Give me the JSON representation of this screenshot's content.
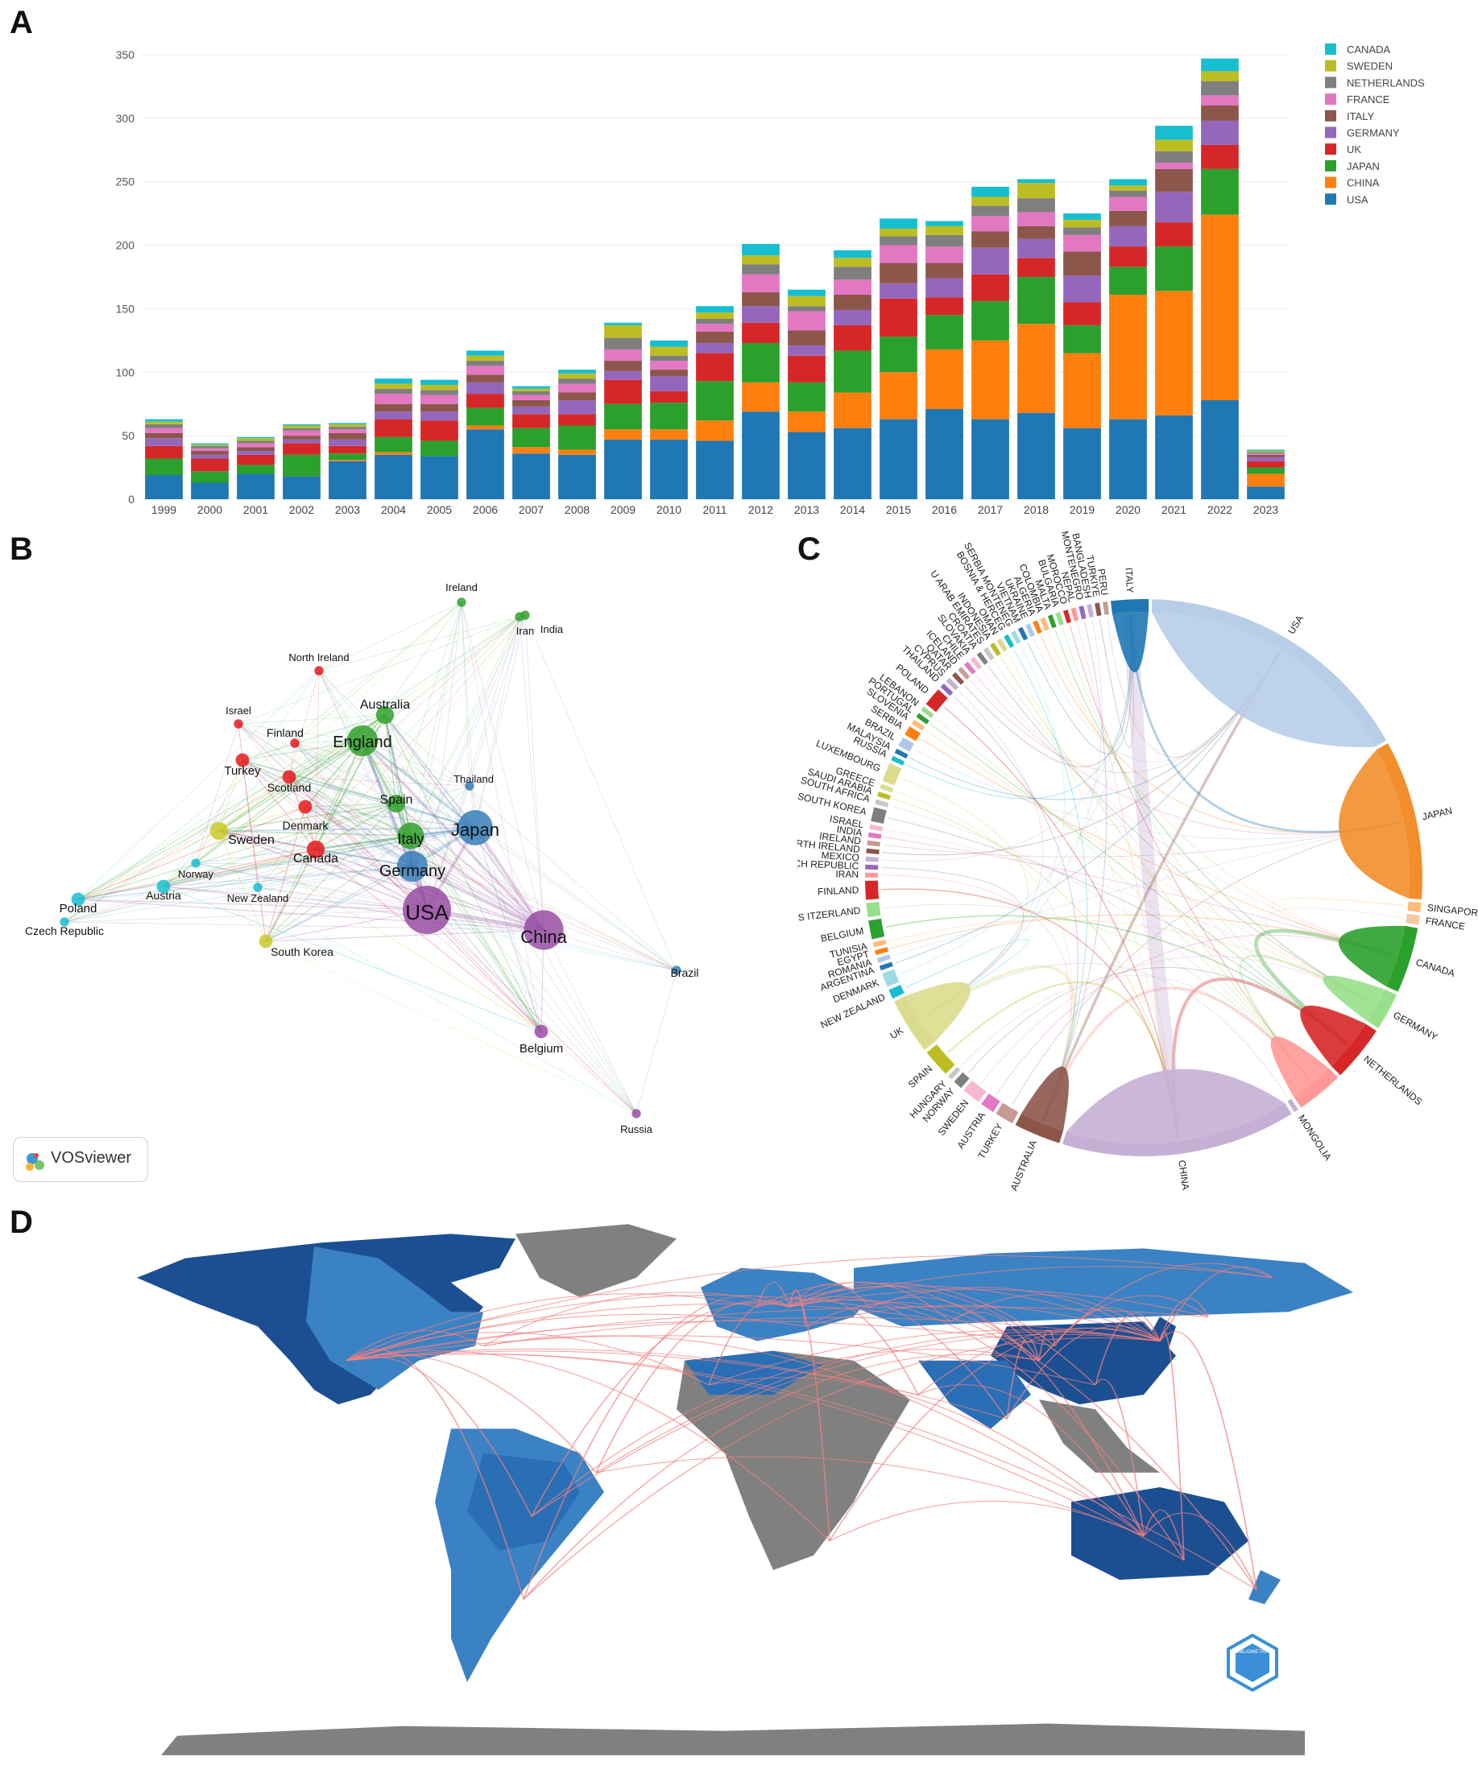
{
  "panels": {
    "A": {
      "label": "A"
    },
    "B": {
      "label": "B",
      "badge": "VOSviewer"
    },
    "C": {
      "label": "C"
    },
    "D": {
      "label": "D"
    }
  },
  "chart_data": [
    {
      "panel": "A",
      "type": "bar",
      "stacked": true,
      "categories": [
        "1999",
        "2000",
        "2001",
        "2002",
        "2003",
        "2004",
        "2005",
        "2006",
        "2007",
        "2008",
        "2009",
        "2010",
        "2011",
        "2012",
        "2013",
        "2014",
        "2015",
        "2016",
        "2017",
        "2018",
        "2019",
        "2020",
        "2021",
        "2022",
        "2023"
      ],
      "ylim": [
        0,
        355
      ],
      "yticks": [
        0,
        50,
        100,
        150,
        200,
        250,
        300,
        350
      ],
      "legend_position": "top-right",
      "series": [
        {
          "name": "USA",
          "color": "#1f77b4",
          "values": [
            19,
            13,
            20,
            18,
            30,
            35,
            34,
            55,
            36,
            35,
            47,
            47,
            46,
            69,
            53,
            56,
            63,
            71,
            63,
            68,
            56,
            63,
            66,
            78,
            10
          ]
        },
        {
          "name": "CHINA",
          "color": "#ff7f0e",
          "values": [
            0,
            0,
            0,
            0,
            1,
            2,
            0,
            3,
            5,
            4,
            8,
            8,
            16,
            23,
            16,
            28,
            37,
            47,
            62,
            70,
            59,
            98,
            98,
            146,
            10
          ]
        },
        {
          "name": "JAPAN",
          "color": "#2ca02c",
          "values": [
            13,
            9,
            7,
            17,
            5,
            12,
            12,
            14,
            15,
            19,
            20,
            21,
            31,
            31,
            23,
            33,
            28,
            27,
            31,
            37,
            22,
            22,
            35,
            36,
            5
          ]
        },
        {
          "name": "UK",
          "color": "#d62728",
          "values": [
            10,
            10,
            8,
            9,
            6,
            14,
            16,
            11,
            11,
            9,
            19,
            9,
            22,
            16,
            21,
            20,
            30,
            14,
            21,
            15,
            18,
            16,
            19,
            19,
            5
          ]
        },
        {
          "name": "GERMANY",
          "color": "#9467bd",
          "values": [
            6,
            3,
            3,
            3,
            5,
            6,
            7,
            9,
            6,
            11,
            7,
            12,
            8,
            13,
            8,
            12,
            12,
            15,
            21,
            15,
            21,
            16,
            24,
            19,
            3
          ]
        },
        {
          "name": "ITALY",
          "color": "#8c564b",
          "values": [
            4,
            3,
            3,
            3,
            5,
            6,
            6,
            6,
            5,
            6,
            8,
            5,
            9,
            11,
            12,
            12,
            16,
            12,
            13,
            10,
            19,
            12,
            18,
            12,
            2
          ]
        },
        {
          "name": "FRANCE",
          "color": "#e377c2",
          "values": [
            4,
            2,
            3,
            4,
            3,
            8,
            7,
            7,
            4,
            7,
            9,
            7,
            6,
            14,
            15,
            12,
            14,
            13,
            12,
            11,
            13,
            11,
            5,
            8,
            1
          ]
        },
        {
          "name": "NETHERLANDS",
          "color": "#7f7f7f",
          "values": [
            3,
            2,
            2,
            2,
            2,
            4,
            4,
            4,
            3,
            4,
            9,
            4,
            4,
            8,
            4,
            10,
            7,
            9,
            8,
            11,
            6,
            5,
            9,
            11,
            1
          ]
        },
        {
          "name": "SWEDEN",
          "color": "#bcbd22",
          "values": [
            2,
            1,
            2,
            2,
            2,
            4,
            4,
            4,
            2,
            4,
            10,
            7,
            5,
            7,
            8,
            7,
            6,
            7,
            7,
            12,
            6,
            4,
            9,
            8,
            1
          ]
        },
        {
          "name": "CANADA",
          "color": "#17becf",
          "values": [
            2,
            1,
            1,
            1,
            1,
            4,
            4,
            4,
            2,
            3,
            2,
            5,
            5,
            9,
            5,
            6,
            8,
            4,
            8,
            3,
            5,
            5,
            11,
            10,
            1
          ]
        }
      ]
    },
    {
      "panel": "B",
      "type": "network",
      "nodes": [
        {
          "id": "USA",
          "cluster": 4,
          "weight": 10
        },
        {
          "id": "China",
          "cluster": 4,
          "weight": 8
        },
        {
          "id": "Japan",
          "cluster": 3,
          "weight": 7
        },
        {
          "id": "Germany",
          "cluster": 3,
          "weight": 6
        },
        {
          "id": "England",
          "cluster": 2,
          "weight": 6
        },
        {
          "id": "Italy",
          "cluster": 2,
          "weight": 5
        },
        {
          "id": "Spain",
          "cluster": 2,
          "weight": 3
        },
        {
          "id": "Australia",
          "cluster": 2,
          "weight": 3
        },
        {
          "id": "Ireland",
          "cluster": 2,
          "weight": 1
        },
        {
          "id": "Iran",
          "cluster": 2,
          "weight": 1
        },
        {
          "id": "India",
          "cluster": 2,
          "weight": 1
        },
        {
          "id": "North Ireland",
          "cluster": 1,
          "weight": 1
        },
        {
          "id": "Israel",
          "cluster": 1,
          "weight": 1
        },
        {
          "id": "Finland",
          "cluster": 1,
          "weight": 1
        },
        {
          "id": "Turkey",
          "cluster": 1,
          "weight": 2
        },
        {
          "id": "Scotland",
          "cluster": 1,
          "weight": 2
        },
        {
          "id": "Denmark",
          "cluster": 1,
          "weight": 2
        },
        {
          "id": "Canada",
          "cluster": 1,
          "weight": 3
        },
        {
          "id": "Sweden",
          "cluster": 5,
          "weight": 3
        },
        {
          "id": "South Korea",
          "cluster": 5,
          "weight": 2
        },
        {
          "id": "Thailand",
          "cluster": 3,
          "weight": 1
        },
        {
          "id": "Norway",
          "cluster": 6,
          "weight": 1
        },
        {
          "id": "Austria",
          "cluster": 6,
          "weight": 2
        },
        {
          "id": "New Zealand",
          "cluster": 6,
          "weight": 1
        },
        {
          "id": "Poland",
          "cluster": 6,
          "weight": 2
        },
        {
          "id": "Czech Republic",
          "cluster": 6,
          "weight": 1
        },
        {
          "id": "Brazil",
          "cluster": 3,
          "weight": 1
        },
        {
          "id": "Belgium",
          "cluster": 4,
          "weight": 2
        },
        {
          "id": "Russia",
          "cluster": 4,
          "weight": 1
        }
      ],
      "cluster_colors": {
        "1": "#e41a1c",
        "2": "#33a02c",
        "3": "#377eb8",
        "4": "#984ea3",
        "5": "#c9c928",
        "6": "#17becf"
      }
    },
    {
      "panel": "C",
      "type": "chord",
      "countries": [
        {
          "name": "USA",
          "color": "#b7cde8",
          "size": 60
        },
        {
          "name": "JAPAN",
          "color": "#f28e2b",
          "size": 34
        },
        {
          "name": "SINGAPORE",
          "color": "#ffbb78",
          "size": 2
        },
        {
          "name": "FRANCE",
          "color": "#f7c8a0",
          "size": 2
        },
        {
          "name": "CANADA",
          "color": "#2ca02c",
          "size": 14
        },
        {
          "name": "GERMANY",
          "color": "#98df8a",
          "size": 8
        },
        {
          "name": "NETHERLANDS",
          "color": "#d62728",
          "size": 12
        },
        {
          "name": "",
          "color": "#ff9896",
          "size": 10
        },
        {
          "name": "MONGOLIA",
          "color": "#c5b0d5",
          "size": 1
        },
        {
          "name": "CHINA",
          "color": "#c5b0d5",
          "size": 50
        },
        {
          "name": "AUSTRALIA",
          "color": "#8c564b",
          "size": 10
        },
        {
          "name": "TURKEY",
          "color": "#c49c94",
          "size": 4
        },
        {
          "name": "AUSTRIA",
          "color": "#e377c2",
          "size": 3
        },
        {
          "name": "SWEDEN",
          "color": "#f7b6d2",
          "size": 4
        },
        {
          "name": "NORWAY",
          "color": "#7f7f7f",
          "size": 2
        },
        {
          "name": "HUNGARY",
          "color": "#c7c7c7",
          "size": 1
        },
        {
          "name": "SPAIN",
          "color": "#bcbd22",
          "size": 6
        },
        {
          "name": "UK",
          "color": "#dbdb8d",
          "size": 12
        },
        {
          "name": "NEW ZEALAND",
          "color": "#17becf",
          "size": 2
        },
        {
          "name": "DENMARK",
          "color": "#9edae5",
          "size": 3
        },
        {
          "name": "ARGENTINA",
          "color": "#1f77b4",
          "size": 1
        },
        {
          "name": "ROMANIA",
          "color": "#aec7e8",
          "size": 1
        },
        {
          "name": "EGYPT",
          "color": "#ff7f0e",
          "size": 1
        },
        {
          "name": "TUNISIA",
          "color": "#ffbb78",
          "size": 1
        },
        {
          "name": "BELGIUM",
          "color": "#2ca02c",
          "size": 4
        },
        {
          "name": "S ITZERLAND",
          "color": "#98df8a",
          "size": 3
        },
        {
          "name": "FINLAND",
          "color": "#d62728",
          "size": 4
        },
        {
          "name": "IRAN",
          "color": "#ff9896",
          "size": 1
        },
        {
          "name": "CZECH REPUBLIC",
          "color": "#9467bd",
          "size": 1
        },
        {
          "name": "MEXICO",
          "color": "#c5b0d5",
          "size": 1
        },
        {
          "name": "NORTH IRELAND",
          "color": "#8c564b",
          "size": 1
        },
        {
          "name": "IRELAND",
          "color": "#c49c94",
          "size": 1
        },
        {
          "name": "INDIA",
          "color": "#e377c2",
          "size": 1
        },
        {
          "name": "ISRAEL",
          "color": "#f7b6d2",
          "size": 1
        },
        {
          "name": "SOUTH KOREA",
          "color": "#7f7f7f",
          "size": 3
        },
        {
          "name": "SOUTH AFRICA",
          "color": "#c7c7c7",
          "size": 1
        },
        {
          "name": "SAUDI ARABIA",
          "color": "#bcbd22",
          "size": 1
        },
        {
          "name": "GREECE",
          "color": "#dbdb8d",
          "size": 1
        },
        {
          "name": "LUXEMBOURG",
          "color": "#dbdb8d",
          "size": 4
        },
        {
          "name": "RUSSIA",
          "color": "#17becf",
          "size": 1
        },
        {
          "name": "MALAYSIA",
          "color": "#1f77b4",
          "size": 1
        },
        {
          "name": "BRAZIL",
          "color": "#aec7e8",
          "size": 2
        },
        {
          "name": "SERBIA",
          "color": "#ff7f0e",
          "size": 2
        },
        {
          "name": "SLOVENIA",
          "color": "#ffbb78",
          "size": 1
        },
        {
          "name": "PORTUGAL",
          "color": "#2ca02c",
          "size": 1
        },
        {
          "name": "LEBANON",
          "color": "#98df8a",
          "size": 1
        },
        {
          "name": "POLAND",
          "color": "#d62728",
          "size": 4
        },
        {
          "name": "THAILAND",
          "color": "#9467bd",
          "size": 1
        },
        {
          "name": "CYPRUS",
          "color": "#c5b0d5",
          "size": 1
        },
        {
          "name": "QATAR",
          "color": "#8c564b",
          "size": 1
        },
        {
          "name": "ICELAND",
          "color": "#c49c94",
          "size": 1
        },
        {
          "name": "CHILE",
          "color": "#e377c2",
          "size": 1
        },
        {
          "name": "SLOVAKIA",
          "color": "#f7b6d2",
          "size": 1
        },
        {
          "name": "CROATIA",
          "color": "#7f7f7f",
          "size": 1
        },
        {
          "name": "U ARAB EMIRATES",
          "color": "#c7c7c7",
          "size": 1
        },
        {
          "name": "INDONESIA",
          "color": "#bcbd22",
          "size": 1
        },
        {
          "name": "OMAN",
          "color": "#dbdb8d",
          "size": 1
        },
        {
          "name": "BOSNIA & HERCEG",
          "color": "#17becf",
          "size": 1
        },
        {
          "name": "SERBIA MONTENEG",
          "color": "#9edae5",
          "size": 1
        },
        {
          "name": "VIETNAM",
          "color": "#1f77b4",
          "size": 1
        },
        {
          "name": "UKRAINE",
          "color": "#aec7e8",
          "size": 1
        },
        {
          "name": "ALGERIA",
          "color": "#ff7f0e",
          "size": 1
        },
        {
          "name": "COLOMBIA",
          "color": "#ffbb78",
          "size": 1
        },
        {
          "name": "MALTA",
          "color": "#2ca02c",
          "size": 1
        },
        {
          "name": "BULGARIA",
          "color": "#98df8a",
          "size": 1
        },
        {
          "name": "MOROCCO",
          "color": "#d62728",
          "size": 1
        },
        {
          "name": "NEPAL",
          "color": "#ff9896",
          "size": 1
        },
        {
          "name": "MONTENEGRO",
          "color": "#9467bd",
          "size": 1
        },
        {
          "name": "BANGLADESH",
          "color": "#c5b0d5",
          "size": 1
        },
        {
          "name": "TURKIYE",
          "color": "#8c564b",
          "size": 1
        },
        {
          "name": "PERU",
          "color": "#c49c94",
          "size": 1
        },
        {
          "name": "ITALY",
          "color": "#1f77b4",
          "size": 8
        }
      ]
    },
    {
      "panel": "D",
      "type": "map",
      "colors": {
        "ocean": "#ffffff",
        "no_data": "#808080",
        "low": "#3b82c4",
        "mid": "#2a6fb5",
        "high": "#1c4f91",
        "link": "#f08080"
      },
      "logo": "BIBLIOMETRIX"
    }
  ]
}
